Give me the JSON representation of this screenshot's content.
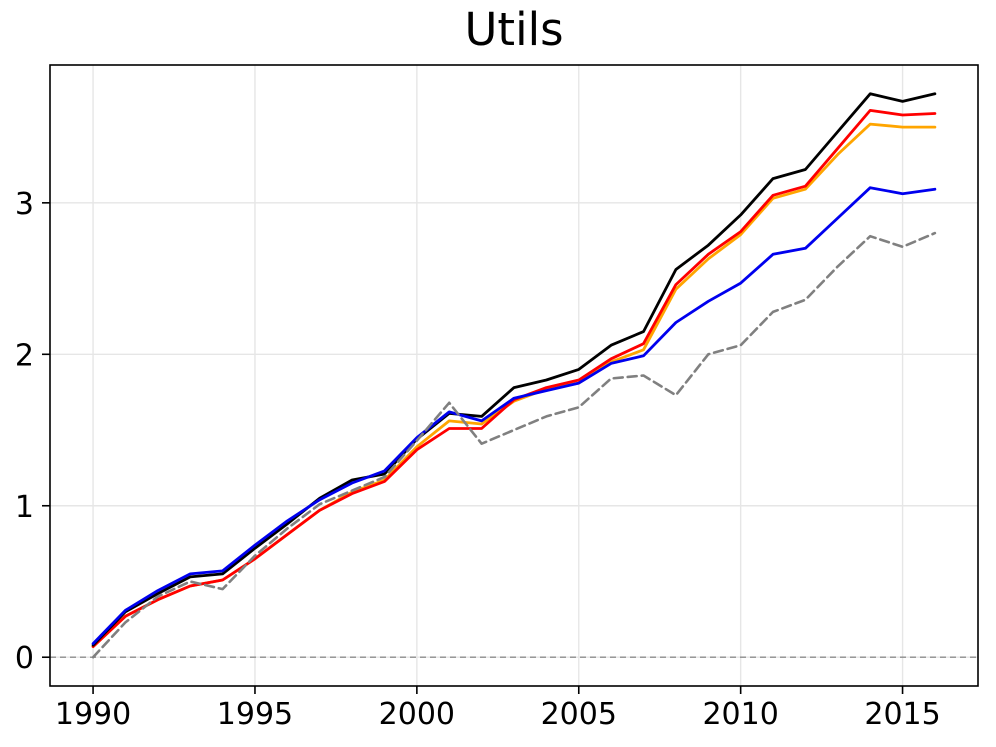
{
  "chart_data": {
    "type": "line",
    "title": "Utils",
    "xlabel": "",
    "ylabel": "",
    "grid": true,
    "legend": "none",
    "zero_line": {
      "y": 0,
      "color": "#8c8c8c",
      "dash": "6,4",
      "width": 1.4
    },
    "xlim": [
      1988.67,
      2017.33
    ],
    "ylim": [
      -0.19,
      3.91
    ],
    "xticks": [
      1990,
      1995,
      2000,
      2005,
      2010,
      2015
    ],
    "yticks": [
      0,
      1,
      2,
      3
    ],
    "x": [
      1990,
      1991,
      1992,
      1993,
      1994,
      1995,
      1996,
      1997,
      1998,
      1999,
      2000,
      2001,
      2002,
      2003,
      2004,
      2005,
      2006,
      2007,
      2008,
      2009,
      2010,
      2011,
      2012,
      2013,
      2014,
      2015,
      2016
    ],
    "series": [
      {
        "name": "orange-line",
        "color": "#ffa500",
        "dash": "",
        "width": 2.8,
        "values": [
          0.07,
          0.27,
          0.38,
          0.47,
          0.51,
          0.65,
          0.81,
          0.97,
          1.09,
          1.17,
          1.39,
          1.56,
          1.54,
          1.69,
          1.77,
          1.81,
          1.95,
          2.03,
          2.43,
          2.63,
          2.79,
          3.03,
          3.09,
          3.32,
          3.52,
          3.5,
          3.5
        ]
      },
      {
        "name": "red-line",
        "color": "#ff0000",
        "dash": "",
        "width": 2.8,
        "values": [
          0.07,
          0.27,
          0.38,
          0.47,
          0.51,
          0.65,
          0.81,
          0.97,
          1.08,
          1.16,
          1.37,
          1.51,
          1.51,
          1.7,
          1.78,
          1.83,
          1.97,
          2.07,
          2.46,
          2.66,
          2.81,
          3.05,
          3.11,
          3.36,
          3.61,
          3.58,
          3.59
        ]
      },
      {
        "name": "black-line",
        "color": "#000000",
        "dash": "",
        "width": 2.8,
        "values": [
          0.08,
          0.3,
          0.42,
          0.53,
          0.55,
          0.72,
          0.88,
          1.05,
          1.17,
          1.21,
          1.44,
          1.61,
          1.59,
          1.78,
          1.83,
          1.9,
          2.06,
          2.15,
          2.56,
          2.72,
          2.92,
          3.16,
          3.22,
          3.47,
          3.72,
          3.67,
          3.72
        ]
      },
      {
        "name": "blue-line",
        "color": "#0000ee",
        "dash": "",
        "width": 2.8,
        "values": [
          0.09,
          0.31,
          0.44,
          0.55,
          0.57,
          0.74,
          0.9,
          1.04,
          1.15,
          1.23,
          1.45,
          1.62,
          1.56,
          1.71,
          1.76,
          1.81,
          1.94,
          1.99,
          2.21,
          2.35,
          2.47,
          2.66,
          2.7,
          2.9,
          3.1,
          3.06,
          3.09
        ]
      },
      {
        "name": "gray-dashed-line",
        "color": "#808080",
        "dash": "9,5",
        "width": 2.6,
        "values": [
          0.0,
          0.23,
          0.4,
          0.5,
          0.45,
          0.67,
          0.85,
          1.01,
          1.1,
          1.19,
          1.43,
          1.68,
          1.41,
          1.5,
          1.59,
          1.65,
          1.84,
          1.86,
          1.73,
          2.0,
          2.06,
          2.28,
          2.36,
          2.58,
          2.78,
          2.71,
          2.8
        ]
      }
    ]
  },
  "style": {
    "grid_color": "#e6e6e6",
    "spine_color": "#000000",
    "tick_color": "#000000"
  }
}
